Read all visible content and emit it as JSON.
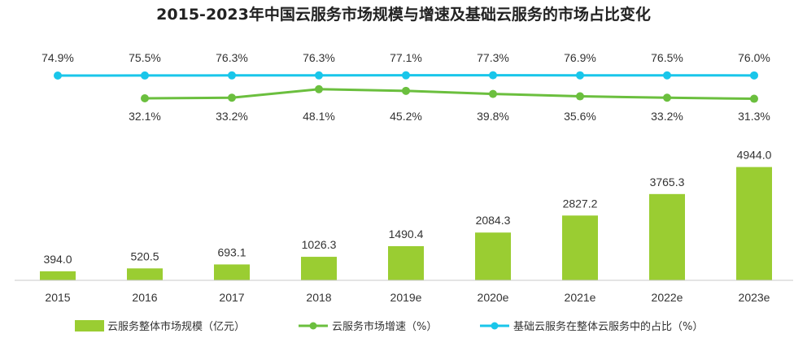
{
  "chart_data": {
    "type": "bar",
    "title": "2015-2023年中国云服务市场规模与增速及基础云服务的市场占比变化",
    "categories": [
      "2015",
      "2016",
      "2017",
      "2018",
      "2019e",
      "2020e",
      "2021e",
      "2022e",
      "2023e"
    ],
    "bar_series": {
      "name": "云服务整体市场规模（亿元）",
      "values": [
        394.0,
        520.5,
        693.1,
        1026.3,
        1490.4,
        2084.3,
        2827.2,
        3765.3,
        4944.0
      ],
      "labels": [
        "394.0",
        "520.5",
        "693.1",
        "1026.3",
        "1490.4",
        "2084.3",
        "2827.2",
        "3765.3",
        "4944.0"
      ],
      "color": "#9ACD32"
    },
    "line_series": [
      {
        "name": "云服务市场增速（%）",
        "values": [
          null,
          32.1,
          33.2,
          48.1,
          45.2,
          39.8,
          35.6,
          33.2,
          31.3
        ],
        "labels": [
          "",
          "32.1%",
          "33.2%",
          "48.1%",
          "45.2%",
          "39.8%",
          "35.6%",
          "33.2%",
          "31.3%"
        ],
        "color": "#6BBF3E"
      },
      {
        "name": "基础云服务在整体云服务中的占比（%）",
        "values": [
          74.9,
          75.5,
          76.3,
          76.3,
          77.1,
          77.3,
          76.9,
          76.5,
          76.0
        ],
        "labels": [
          "74.9%",
          "75.5%",
          "76.3%",
          "76.3%",
          "77.1%",
          "77.3%",
          "76.9%",
          "76.5%",
          "76.0%"
        ],
        "color": "#19C6EA"
      }
    ],
    "legend_position": "bottom",
    "grid": false
  }
}
